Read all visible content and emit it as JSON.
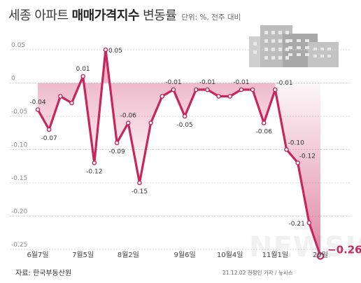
{
  "header": {
    "title_part1": "세종 아파트",
    "title_part2": "매매가격지수",
    "title_part3": "변동률",
    "unit": "단위: %, 전주 대비"
  },
  "footer": {
    "source": "자료: 한국부동산원",
    "credit": "21.12.02 천정인 기자 / 뉴시스",
    "watermark": "NEWSIS"
  },
  "chart_data": {
    "type": "line",
    "title": "세종 아파트 매매가격지수 변동률",
    "unit": "단위: %, 전주 대비",
    "ylim": [
      -0.25,
      0.07
    ],
    "yticks": [
      0.05,
      0,
      -0.05,
      -0.1,
      -0.15,
      -0.2,
      -0.25
    ],
    "ytick_labels": [
      "0.05",
      "0",
      "-0.05",
      "-0.10",
      "-0.15",
      "-0.20",
      "-0.25"
    ],
    "xtick_labels": [
      {
        "index": 0,
        "label": "6월7일"
      },
      {
        "index": 4,
        "label": "7월5일"
      },
      {
        "index": 8,
        "label": "8월2일"
      },
      {
        "index": 13,
        "label": "9월6일"
      },
      {
        "index": 17,
        "label": "10월4일"
      },
      {
        "index": 21,
        "label": "11월1일"
      },
      {
        "index": 25,
        "label": "29일"
      }
    ],
    "values": [
      -0.04,
      -0.07,
      -0.02,
      -0.03,
      0.01,
      -0.12,
      0.05,
      -0.09,
      -0.06,
      -0.15,
      -0.06,
      -0.02,
      -0.01,
      -0.05,
      -0.01,
      -0.01,
      -0.02,
      -0.02,
      -0.01,
      -0.01,
      -0.06,
      -0.01,
      -0.1,
      -0.12,
      -0.21,
      -0.26
    ],
    "data_labels": [
      {
        "index": 0,
        "text": "-0.04",
        "pos": "above"
      },
      {
        "index": 1,
        "text": "-0.07",
        "pos": "below"
      },
      {
        "index": 4,
        "text": "0.01",
        "pos": "above"
      },
      {
        "index": 5,
        "text": "-0.12",
        "pos": "below"
      },
      {
        "index": 6,
        "text": "0.05",
        "pos": "right"
      },
      {
        "index": 7,
        "text": "-0.09",
        "pos": "below"
      },
      {
        "index": 8,
        "text": "-0.06",
        "pos": "above"
      },
      {
        "index": 9,
        "text": "-0.15",
        "pos": "below"
      },
      {
        "index": 12,
        "text": "-0.01",
        "pos": "above"
      },
      {
        "index": 13,
        "text": "-0.05",
        "pos": "below"
      },
      {
        "index": 15,
        "text": "-0.01",
        "pos": "above"
      },
      {
        "index": 18,
        "text": "-0.01",
        "pos": "above"
      },
      {
        "index": 20,
        "text": "-0.06",
        "pos": "below"
      },
      {
        "index": 21,
        "text": "-0.01",
        "pos": "above-right"
      },
      {
        "index": 22,
        "text": "-0.10",
        "pos": "above-right"
      },
      {
        "index": 23,
        "text": "-0.12",
        "pos": "above-right"
      },
      {
        "index": 24,
        "text": "-0.21",
        "pos": "left"
      },
      {
        "index": 25,
        "text": "−0.26",
        "pos": "highlight"
      }
    ],
    "colors": {
      "line": "#c8255a",
      "highlight": "#c8255a",
      "grid": "#d4d4d4",
      "tick_text": "#8a8a8a"
    },
    "grid": "horizontal-dotted",
    "area_fill": "gradient-pink"
  }
}
